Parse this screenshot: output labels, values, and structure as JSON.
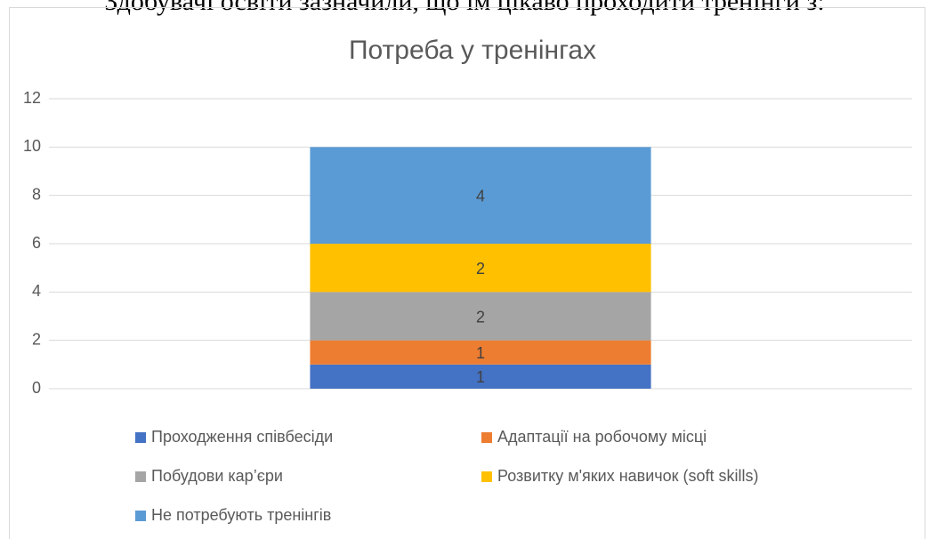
{
  "intro_text": "Здобувачі освіти зазначили, що їм цікаво проходити тренінги з:",
  "chart_data": {
    "type": "stacked_bar",
    "title": "Потреба у тренінгах",
    "categories": [
      null
    ],
    "series": [
      {
        "name": "Проходження співбесіди",
        "color": "#4472c4",
        "values": [
          1
        ]
      },
      {
        "name": "Адаптації на робочому місці",
        "color": "#ed7d31",
        "values": [
          1
        ]
      },
      {
        "name": "Побудови кар’єри",
        "color": "#a5a5a5",
        "values": [
          2
        ]
      },
      {
        "name": "Розвитку м'яких навичок (soft skills)",
        "color": "#ffc000",
        "values": [
          2
        ]
      },
      {
        "name": "Не потребують тренінгів",
        "color": "#5b9bd5",
        "values": [
          4
        ]
      }
    ],
    "ylim": [
      0,
      12
    ],
    "yticks": [
      0,
      2,
      4,
      6,
      8,
      10,
      12
    ],
    "grid": true,
    "legend": "bottom"
  }
}
